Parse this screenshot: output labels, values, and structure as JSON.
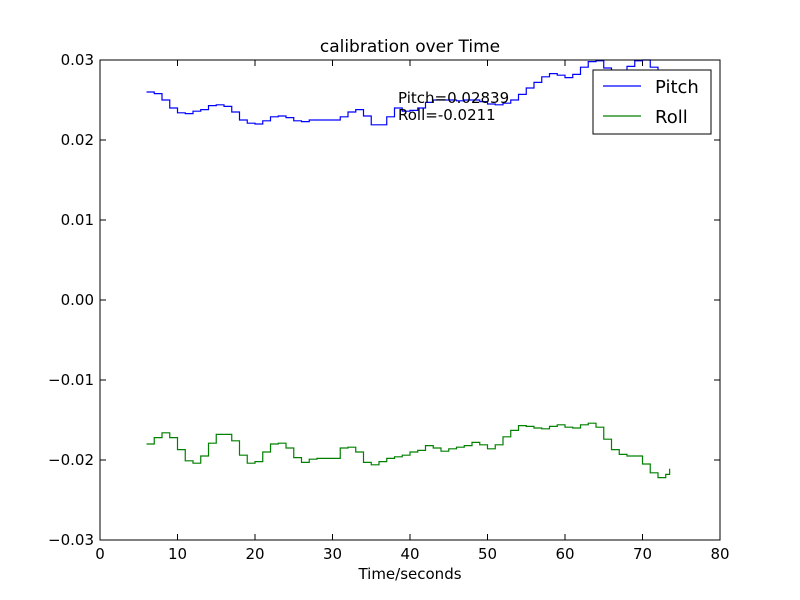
{
  "chart_data": {
    "type": "line",
    "title": "calibration over Time",
    "xlabel": "Time/seconds",
    "ylabel": "",
    "xlim": [
      0,
      80
    ],
    "ylim": [
      -0.03,
      0.03
    ],
    "xticks": [
      0,
      10,
      20,
      30,
      40,
      50,
      60,
      70,
      80
    ],
    "xtick_labels": [
      "0",
      "10",
      "20",
      "30",
      "40",
      "50",
      "60",
      "70",
      "80"
    ],
    "yticks": [
      -0.03,
      -0.02,
      -0.01,
      0.0,
      0.01,
      0.02,
      0.03
    ],
    "ytick_labels": [
      "−0.03",
      "−0.02",
      "−0.01",
      "0.00",
      "0.01",
      "0.02",
      "0.03"
    ],
    "grid": false,
    "legend_position": "top-right",
    "step": true,
    "annotations": [
      "Pitch=0.02839",
      "Roll=-0.0211"
    ],
    "series": [
      {
        "name": "Pitch",
        "color": "#0000ff",
        "x": [
          6,
          7,
          8,
          9,
          10,
          11,
          12,
          13,
          14,
          15,
          16,
          17,
          18,
          19,
          20,
          21,
          22,
          23,
          24,
          25,
          26,
          27,
          28,
          29,
          30,
          31,
          32,
          33,
          34,
          35,
          36,
          37,
          38,
          39,
          40,
          41,
          42,
          43,
          44,
          45,
          46,
          47,
          48,
          49,
          50,
          51,
          52,
          53,
          54,
          55,
          56,
          57,
          58,
          59,
          60,
          61,
          62,
          63,
          64,
          65,
          66,
          67,
          68,
          69,
          70,
          71,
          72,
          73,
          73.5
        ],
        "values": [
          0.026,
          0.0258,
          0.025,
          0.024,
          0.0234,
          0.0233,
          0.0236,
          0.0238,
          0.0243,
          0.0244,
          0.0242,
          0.0235,
          0.0225,
          0.0221,
          0.022,
          0.0224,
          0.0229,
          0.023,
          0.0228,
          0.0224,
          0.0223,
          0.0225,
          0.0225,
          0.0225,
          0.0225,
          0.0229,
          0.0235,
          0.0238,
          0.023,
          0.0219,
          0.0219,
          0.0229,
          0.024,
          0.0236,
          0.0237,
          0.024,
          0.0247,
          0.025,
          0.025,
          0.025,
          0.0249,
          0.025,
          0.025,
          0.0248,
          0.0245,
          0.0244,
          0.0246,
          0.025,
          0.0257,
          0.0265,
          0.0272,
          0.0279,
          0.0283,
          0.0281,
          0.0278,
          0.0282,
          0.0291,
          0.0298,
          0.0299,
          0.029,
          0.0284,
          0.0285,
          0.0292,
          0.0299,
          0.03,
          0.0291,
          0.0285,
          0.0284,
          0.0284
        ]
      },
      {
        "name": "Roll",
        "color": "#008000",
        "x": [
          6,
          7,
          8,
          9,
          10,
          11,
          12,
          13,
          14,
          15,
          16,
          17,
          18,
          19,
          20,
          21,
          22,
          23,
          24,
          25,
          26,
          27,
          28,
          29,
          30,
          31,
          32,
          33,
          34,
          35,
          36,
          37,
          38,
          39,
          40,
          41,
          42,
          43,
          44,
          45,
          46,
          47,
          48,
          49,
          50,
          51,
          52,
          53,
          54,
          55,
          56,
          57,
          58,
          59,
          60,
          61,
          62,
          63,
          64,
          65,
          66,
          67,
          68,
          69,
          70,
          71,
          72,
          73,
          73.5
        ],
        "values": [
          -0.018,
          -0.0172,
          -0.0166,
          -0.0172,
          -0.0187,
          -0.0201,
          -0.0204,
          -0.0195,
          -0.0179,
          -0.0168,
          -0.0168,
          -0.0176,
          -0.0194,
          -0.0204,
          -0.0202,
          -0.019,
          -0.018,
          -0.0179,
          -0.0185,
          -0.0197,
          -0.0203,
          -0.0199,
          -0.0198,
          -0.0198,
          -0.0198,
          -0.0185,
          -0.0184,
          -0.019,
          -0.0203,
          -0.0206,
          -0.0202,
          -0.0198,
          -0.0196,
          -0.0194,
          -0.019,
          -0.0188,
          -0.0182,
          -0.0185,
          -0.0189,
          -0.0186,
          -0.0184,
          -0.0182,
          -0.0178,
          -0.0181,
          -0.0186,
          -0.0181,
          -0.0171,
          -0.0163,
          -0.0157,
          -0.0158,
          -0.016,
          -0.0161,
          -0.0158,
          -0.0156,
          -0.0159,
          -0.016,
          -0.0156,
          -0.0154,
          -0.0159,
          -0.0174,
          -0.0187,
          -0.0193,
          -0.0195,
          -0.0195,
          -0.0205,
          -0.0216,
          -0.0222,
          -0.0218,
          -0.0211
        ]
      }
    ]
  }
}
